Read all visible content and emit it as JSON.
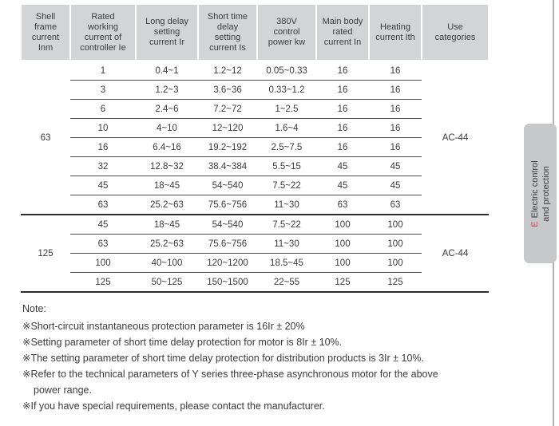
{
  "table": {
    "headers": [
      "Shell\nframe\ncurrent\nInm",
      "Rated\nworking\ncurrent of\ncontroller Ie",
      "Long delay\nsetting\ncurrent Ir",
      "Short time\ndelay\nsetting\ncurrent Is",
      "380V\ncontrol\npower kw",
      "Main body\nrated\ncurrent In",
      "Heating\ncurrent Ith",
      "Use\ncategories"
    ],
    "groups": [
      {
        "shell_frame_current": "63",
        "use_category": "AC-44",
        "rows": [
          [
            "1",
            "0.4~1",
            "1.2~12",
            "0.05~0.33",
            "16",
            "16"
          ],
          [
            "3",
            "1.2~3",
            "3.6~36",
            "0.33~1.2",
            "16",
            "16"
          ],
          [
            "6",
            "2.4~6",
            "7.2~72",
            "1~2.5",
            "16",
            "16"
          ],
          [
            "10",
            "4~10",
            "12~120",
            "1.6~4",
            "16",
            "16"
          ],
          [
            "16",
            "6.4~16",
            "19.2~192",
            "2.5~7.5",
            "16",
            "16"
          ],
          [
            "32",
            "12.8~32",
            "38.4~384",
            "5.5~15",
            "45",
            "45"
          ],
          [
            "45",
            "18~45",
            "54~540",
            "7.5~22",
            "45",
            "45"
          ],
          [
            "63",
            "25.2~63",
            "75.6~756",
            "11~30",
            "63",
            "63"
          ]
        ]
      },
      {
        "shell_frame_current": "125",
        "use_category": "AC-44",
        "rows": [
          [
            "45",
            "18~45",
            "54~540",
            "7.5~22",
            "100",
            "100"
          ],
          [
            "63",
            "25.2~63",
            "75.6~756",
            "11~30",
            "100",
            "100"
          ],
          [
            "100",
            "40~100",
            "120~1200",
            "18.5~45",
            "100",
            "100"
          ],
          [
            "125",
            "50~125",
            "150~1500",
            "22~55",
            "125",
            "125"
          ]
        ]
      }
    ]
  },
  "notes": {
    "title": "Note:",
    "items": [
      [
        "※Short-circuit instantaneous protection parameter is 16Ir ± 20%"
      ],
      [
        "※Setting parameter of short time delay protection for motor is 8Ir ± 10%."
      ],
      [
        "※The setting parameter of short time delay protection for distribution products is 3Ir ± 10%."
      ],
      [
        "※Refer to the technical parameters of Y series three-phase asynchronous motor for the above",
        "power range."
      ],
      [
        "※If you have special requirements, please contact the manufacturer."
      ]
    ]
  },
  "side_tab": {
    "section_letter": "E",
    "label_line1": "Electric control",
    "label_line2": "and protection"
  },
  "colors": {
    "section_letter_red": "#cf4045",
    "header_cell_gray": "#d3d4d6",
    "side_tab_gray": "#c7c8ca"
  }
}
